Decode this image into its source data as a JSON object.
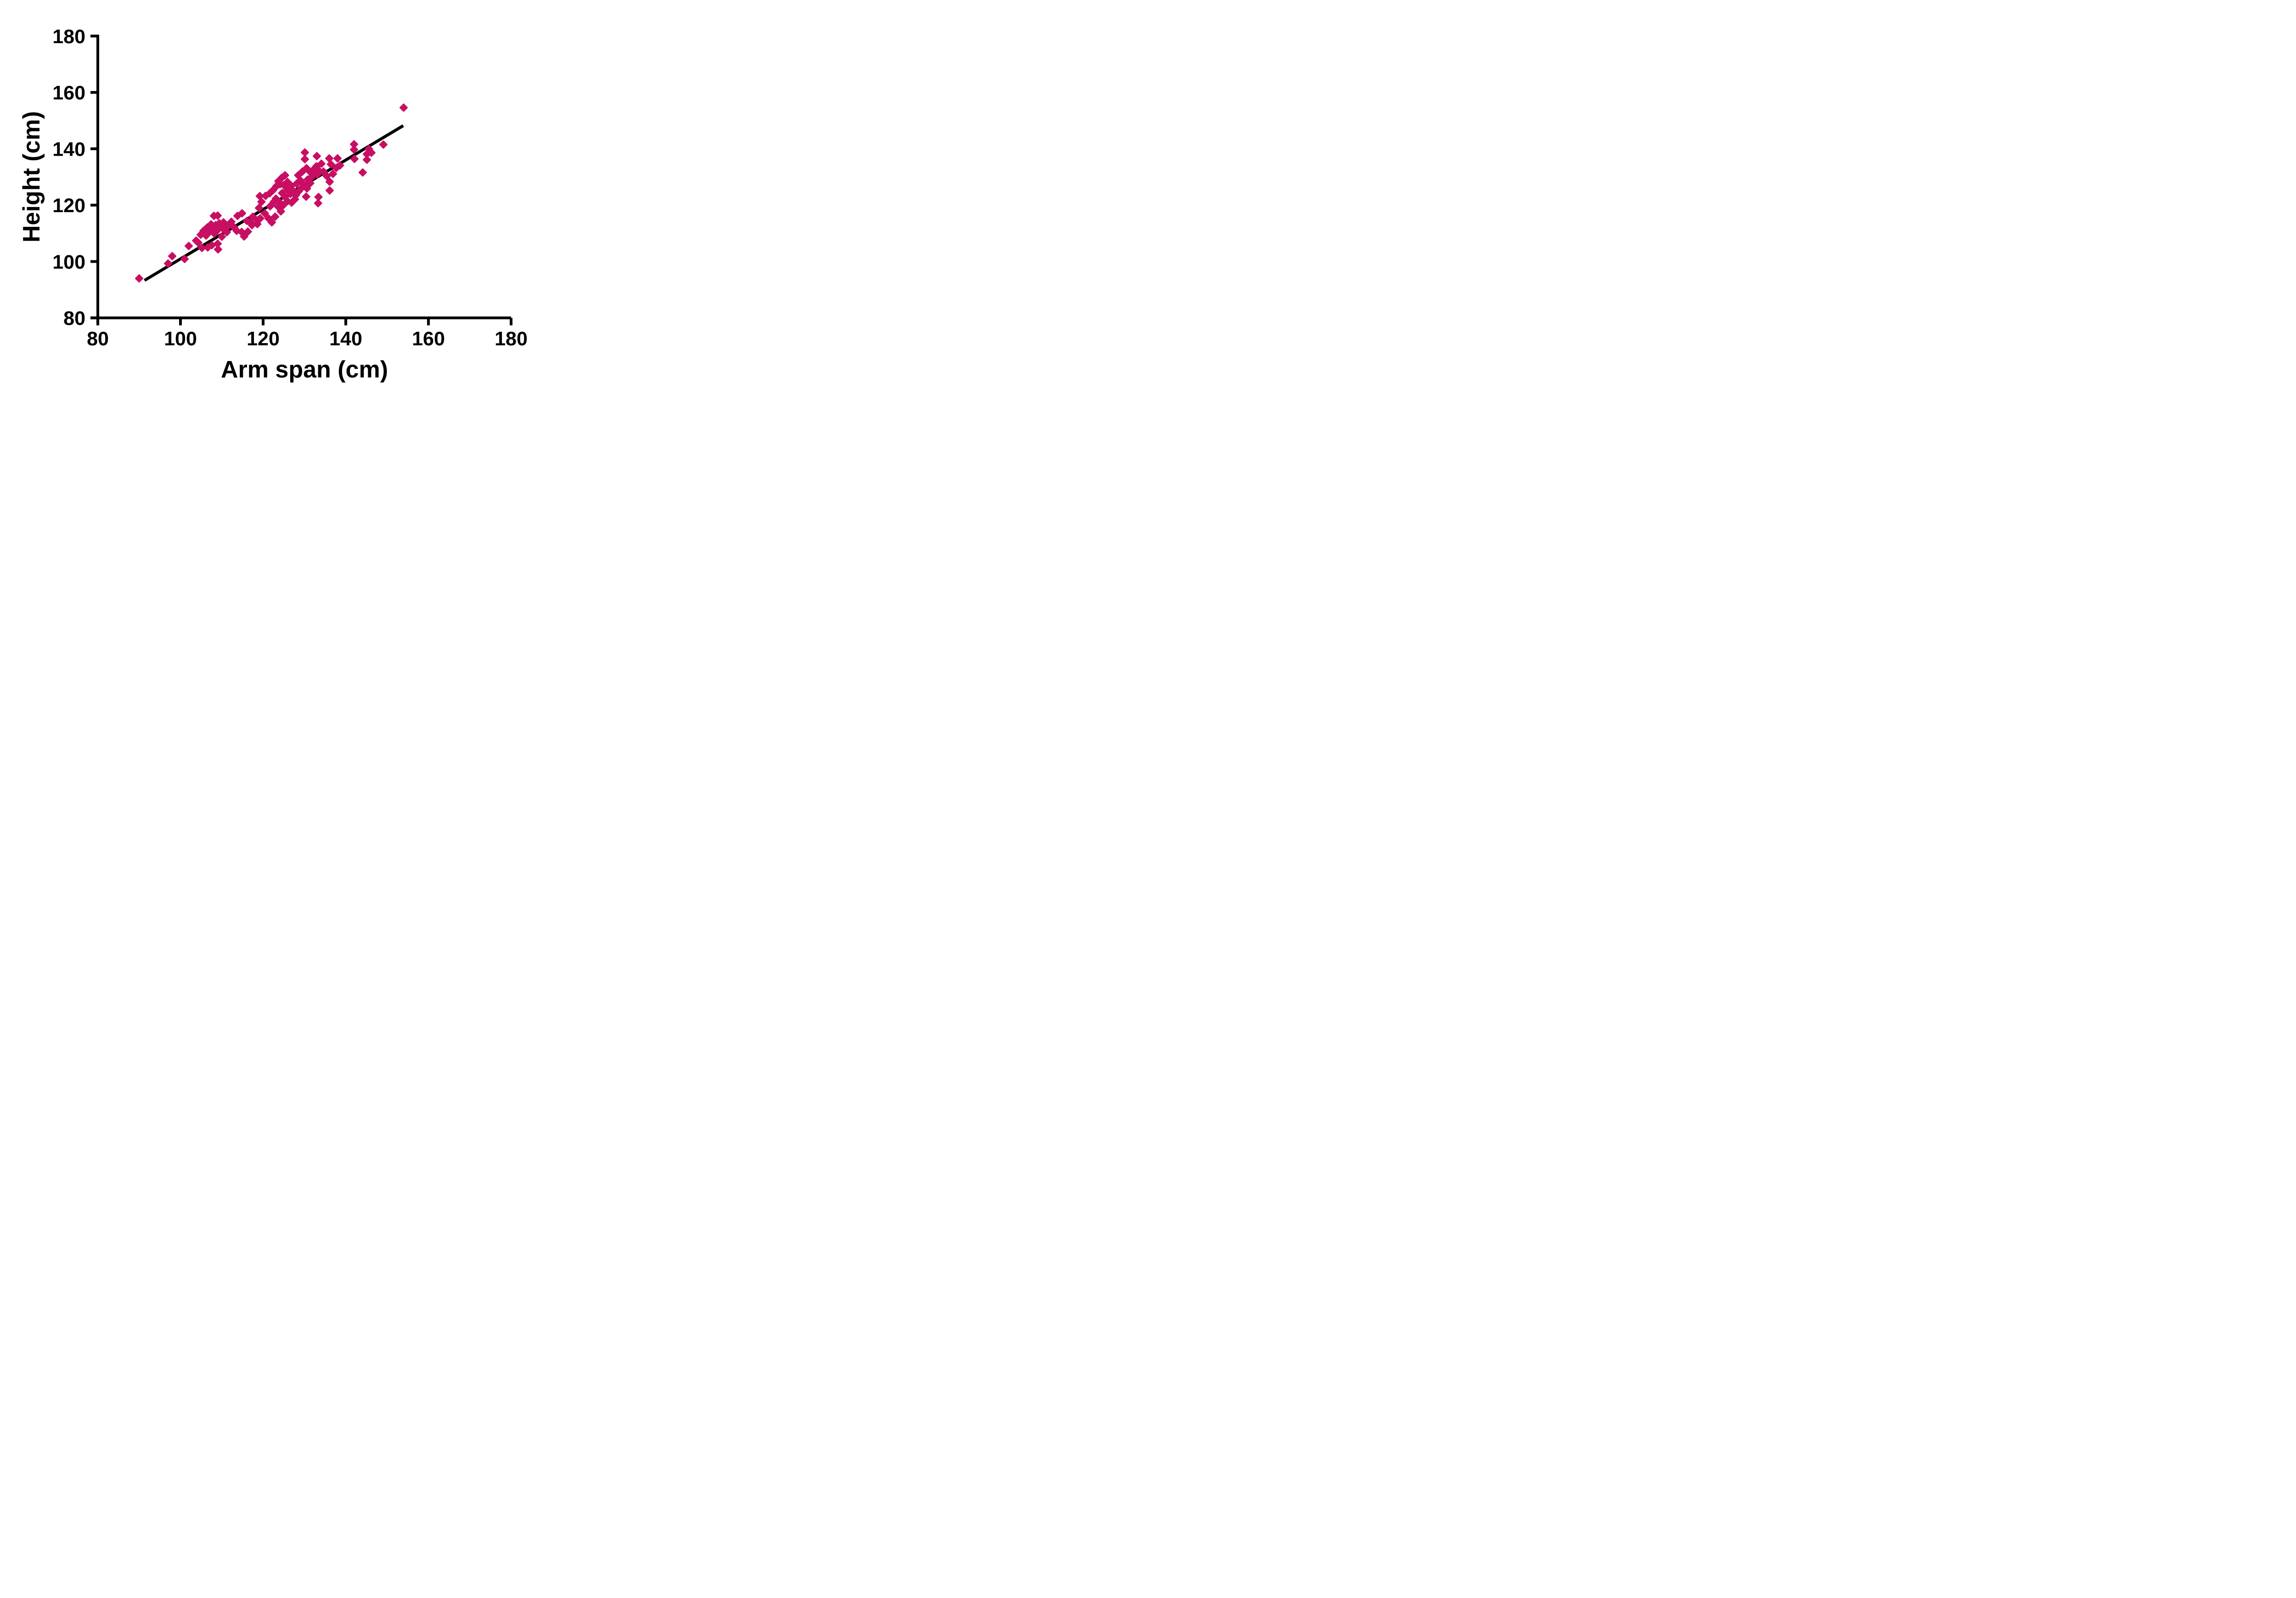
{
  "chart_data": {
    "type": "scatter",
    "title": "",
    "xlabel": "Arm span (cm)",
    "ylabel": "Height (cm)",
    "xlim": [
      80,
      180
    ],
    "ylim": [
      80,
      180
    ],
    "xticks": [
      80,
      100,
      120,
      140,
      160,
      180
    ],
    "yticks": [
      80,
      100,
      120,
      140,
      160,
      180
    ],
    "grid": false,
    "legend": "none",
    "marker_shape": "diamond",
    "marker_color": "#C80E63",
    "axis_color": "#000000",
    "trend_line": {
      "x1": 91.3,
      "y1": 93.3,
      "x2": 153.9,
      "y2": 148.2,
      "color": "#000000"
    },
    "points": [
      [
        90.0,
        94.0
      ],
      [
        97.0,
        99.3
      ],
      [
        98.0,
        101.9
      ],
      [
        101.0,
        100.9
      ],
      [
        102.0,
        105.5
      ],
      [
        103.8,
        107.4
      ],
      [
        104.3,
        106.7
      ],
      [
        105.2,
        104.8
      ],
      [
        106.6,
        105.0
      ],
      [
        107.6,
        105.8
      ],
      [
        109.0,
        106.3
      ],
      [
        109.1,
        104.3
      ],
      [
        104.9,
        109.5
      ],
      [
        105.6,
        110.9
      ],
      [
        106.2,
        109.2
      ],
      [
        106.5,
        112.1
      ],
      [
        107.1,
        110.6
      ],
      [
        107.4,
        113.2
      ],
      [
        107.9,
        111.6
      ],
      [
        108.2,
        109.9
      ],
      [
        108.5,
        112.9
      ],
      [
        108.9,
        111.0
      ],
      [
        109.4,
        113.6
      ],
      [
        109.9,
        112.2
      ],
      [
        110.4,
        113.9
      ],
      [
        110.0,
        108.8
      ],
      [
        108.1,
        116.2
      ],
      [
        109.0,
        116.3
      ],
      [
        110.7,
        111.1
      ],
      [
        111.2,
        110.4
      ],
      [
        111.6,
        112.7
      ],
      [
        112.3,
        114.1
      ],
      [
        113.0,
        112.1
      ],
      [
        113.6,
        110.9
      ],
      [
        114.8,
        110.5
      ],
      [
        115.4,
        108.9
      ],
      [
        116.3,
        110.6
      ],
      [
        113.8,
        116.2
      ],
      [
        114.9,
        117.1
      ],
      [
        116.1,
        114.4
      ],
      [
        117.0,
        113.9
      ],
      [
        117.5,
        115.9
      ],
      [
        117.3,
        112.9
      ],
      [
        118.7,
        114.6
      ],
      [
        118.6,
        113.3
      ],
      [
        119.3,
        115.3
      ],
      [
        120.4,
        117.1
      ],
      [
        121.3,
        115.3
      ],
      [
        122.1,
        113.9
      ],
      [
        122.9,
        115.9
      ],
      [
        119.0,
        119.0
      ],
      [
        119.6,
        121.2
      ],
      [
        119.2,
        123.2
      ],
      [
        120.6,
        123.3
      ],
      [
        121.6,
        124.2
      ],
      [
        121.7,
        119.6
      ],
      [
        122.6,
        121.2
      ],
      [
        123.6,
        119.5
      ],
      [
        124.3,
        117.8
      ],
      [
        124.0,
        121.0
      ],
      [
        124.8,
        119.9
      ],
      [
        123.1,
        122.3
      ],
      [
        122.4,
        125.3
      ],
      [
        123.2,
        126.7
      ],
      [
        123.7,
        128.5
      ],
      [
        124.5,
        129.7
      ],
      [
        125.3,
        130.6
      ],
      [
        124.1,
        127.4
      ],
      [
        124.6,
        124.3
      ],
      [
        125.3,
        122.9
      ],
      [
        125.9,
        125.5
      ],
      [
        126.6,
        124.0
      ],
      [
        127.3,
        125.1
      ],
      [
        127.9,
        123.5
      ],
      [
        128.6,
        124.9
      ],
      [
        129.3,
        126.1
      ],
      [
        125.9,
        121.4
      ],
      [
        126.9,
        120.9
      ],
      [
        127.7,
        122.1
      ],
      [
        125.0,
        127.1
      ],
      [
        125.9,
        128.2
      ],
      [
        126.8,
        126.9
      ],
      [
        128.1,
        127.6
      ],
      [
        129.0,
        128.8
      ],
      [
        129.9,
        127.2
      ],
      [
        130.6,
        125.9
      ],
      [
        130.4,
        123.0
      ],
      [
        131.4,
        127.8
      ],
      [
        130.8,
        129.1
      ],
      [
        128.5,
        130.6
      ],
      [
        129.5,
        131.9
      ],
      [
        130.5,
        133.1
      ],
      [
        131.5,
        131.6
      ],
      [
        132.4,
        132.9
      ],
      [
        131.9,
        130.2
      ],
      [
        132.9,
        133.8
      ],
      [
        133.6,
        132.1
      ],
      [
        134.1,
        134.7
      ],
      [
        133.1,
        130.9
      ],
      [
        134.6,
        131.9
      ],
      [
        130.1,
        138.7
      ],
      [
        130.1,
        136.3
      ],
      [
        133.0,
        137.4
      ],
      [
        136.0,
        136.6
      ],
      [
        138.0,
        136.6
      ],
      [
        136.4,
        134.5
      ],
      [
        138.6,
        134.1
      ],
      [
        135.4,
        130.3
      ],
      [
        136.1,
        128.3
      ],
      [
        136.9,
        131.1
      ],
      [
        137.7,
        133.2
      ],
      [
        133.4,
        122.9
      ],
      [
        133.3,
        120.7
      ],
      [
        136.1,
        125.2
      ],
      [
        142.0,
        141.6
      ],
      [
        142.0,
        139.7
      ],
      [
        142.1,
        136.4
      ],
      [
        145.6,
        139.9
      ],
      [
        145.1,
        138.1
      ],
      [
        146.2,
        138.6
      ],
      [
        145.1,
        136.1
      ],
      [
        149.1,
        141.5
      ],
      [
        144.1,
        131.6
      ],
      [
        154.0,
        154.6
      ]
    ]
  }
}
